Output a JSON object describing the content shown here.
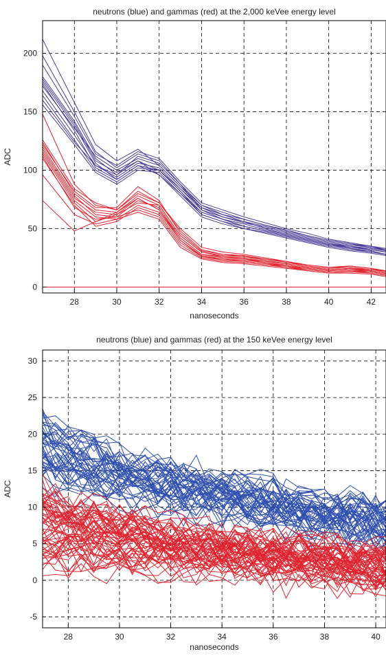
{
  "chart_data": [
    {
      "type": "line",
      "title": "neutrons (blue) and gammas (red) at the 2,000 keVee energy level",
      "xlabel": "nanoseconds",
      "ylabel": "ADC",
      "xlim": [
        26.5,
        42.7
      ],
      "ylim": [
        -5,
        228
      ],
      "x_ticks": [
        28,
        30,
        32,
        34,
        36,
        38,
        40,
        42
      ],
      "y_ticks": [
        0,
        50,
        100,
        150,
        200
      ],
      "grid": true,
      "grid_style": "dashed",
      "colors": {
        "neutron": "#4b3c96",
        "gamma": "#e0232e"
      },
      "x": [
        26.5,
        28,
        29,
        30,
        31,
        32,
        33,
        34,
        35,
        36,
        37,
        38,
        39,
        40,
        41,
        42,
        42.7
      ],
      "series": [
        {
          "group": "neutron",
          "values": [
            212,
            158,
            122,
            108,
            118,
            104,
            86,
            70,
            62,
            58,
            53,
            49,
            44,
            40,
            37,
            35,
            32
          ]
        },
        {
          "group": "neutron",
          "values": [
            198,
            150,
            116,
            102,
            114,
            108,
            88,
            66,
            60,
            55,
            51,
            46,
            42,
            38,
            35,
            32,
            30
          ]
        },
        {
          "group": "neutron",
          "values": [
            180,
            142,
            110,
            96,
            108,
            100,
            82,
            64,
            58,
            52,
            48,
            44,
            40,
            36,
            33,
            31,
            28
          ]
        },
        {
          "group": "neutron",
          "values": [
            176,
            138,
            106,
            92,
            104,
            96,
            80,
            62,
            56,
            50,
            46,
            42,
            38,
            34,
            31,
            29,
            27
          ]
        },
        {
          "group": "neutron",
          "values": [
            172,
            136,
            112,
            100,
            110,
            104,
            86,
            68,
            60,
            56,
            50,
            45,
            41,
            37,
            34,
            32,
            30
          ]
        },
        {
          "group": "neutron",
          "values": [
            168,
            130,
            104,
            94,
            106,
            102,
            84,
            66,
            58,
            54,
            49,
            45,
            41,
            37,
            35,
            33,
            31
          ]
        },
        {
          "group": "neutron",
          "values": [
            164,
            126,
            100,
            90,
            102,
            100,
            84,
            68,
            62,
            56,
            52,
            47,
            43,
            39,
            36,
            34,
            32
          ]
        },
        {
          "group": "neutron",
          "values": [
            160,
            124,
            104,
            96,
            112,
            106,
            88,
            70,
            64,
            58,
            53,
            48,
            44,
            40,
            37,
            34,
            31
          ]
        },
        {
          "group": "neutron",
          "values": [
            156,
            122,
            98,
            88,
            100,
            98,
            80,
            64,
            58,
            52,
            48,
            44,
            40,
            36,
            34,
            32,
            30
          ]
        },
        {
          "group": "neutron",
          "values": [
            178,
            140,
            108,
            98,
            108,
            96,
            78,
            60,
            54,
            50,
            47,
            43,
            39,
            35,
            32,
            30,
            28
          ]
        },
        {
          "group": "neutron",
          "values": [
            190,
            146,
            114,
            104,
            116,
            110,
            90,
            72,
            66,
            60,
            55,
            50,
            46,
            41,
            38,
            35,
            33
          ]
        },
        {
          "group": "neutron",
          "values": [
            174,
            134,
            102,
            92,
            104,
            100,
            82,
            62,
            56,
            52,
            48,
            44,
            40,
            36,
            33,
            30,
            28
          ]
        },
        {
          "group": "gamma",
          "values": [
            148,
            88,
            70,
            66,
            82,
            72,
            48,
            32,
            28,
            26,
            24,
            22,
            18,
            16,
            18,
            16,
            13
          ]
        },
        {
          "group": "gamma",
          "values": [
            124,
            80,
            66,
            64,
            78,
            70,
            44,
            30,
            26,
            25,
            22,
            20,
            17,
            15,
            16,
            14,
            12
          ]
        },
        {
          "group": "gamma",
          "values": [
            120,
            78,
            62,
            60,
            74,
            68,
            42,
            28,
            25,
            24,
            21,
            19,
            16,
            14,
            15,
            13,
            11
          ]
        },
        {
          "group": "gamma",
          "values": [
            118,
            76,
            64,
            62,
            76,
            66,
            40,
            27,
            24,
            23,
            21,
            18,
            16,
            14,
            15,
            14,
            12
          ]
        },
        {
          "group": "gamma",
          "values": [
            116,
            74,
            60,
            58,
            70,
            64,
            40,
            26,
            24,
            22,
            20,
            18,
            15,
            13,
            14,
            13,
            11
          ]
        },
        {
          "group": "gamma",
          "values": [
            114,
            72,
            56,
            62,
            72,
            70,
            44,
            30,
            27,
            26,
            23,
            20,
            17,
            15,
            16,
            15,
            13
          ]
        },
        {
          "group": "gamma",
          "values": [
            122,
            82,
            68,
            68,
            86,
            74,
            46,
            31,
            28,
            27,
            24,
            21,
            18,
            16,
            17,
            15,
            14
          ]
        },
        {
          "group": "gamma",
          "values": [
            110,
            70,
            52,
            56,
            68,
            62,
            38,
            26,
            23,
            22,
            20,
            17,
            15,
            13,
            14,
            12,
            10
          ]
        },
        {
          "group": "gamma",
          "values": [
            112,
            68,
            58,
            60,
            66,
            60,
            36,
            25,
            22,
            21,
            19,
            17,
            14,
            12,
            13,
            12,
            10
          ]
        },
        {
          "group": "gamma",
          "values": [
            96,
            62,
            54,
            58,
            64,
            58,
            34,
            24,
            21,
            20,
            18,
            16,
            14,
            12,
            12,
            11,
            9
          ]
        },
        {
          "group": "gamma",
          "values": [
            74,
            48,
            56,
            64,
            76,
            66,
            42,
            28,
            26,
            24,
            22,
            20,
            17,
            15,
            16,
            14,
            12
          ]
        },
        {
          "group": "gamma",
          "values": [
            126,
            84,
            72,
            66,
            80,
            72,
            50,
            34,
            30,
            28,
            25,
            22,
            19,
            17,
            18,
            16,
            14
          ]
        },
        {
          "group": "gamma",
          "values": [
            0,
            0,
            0,
            0,
            0,
            0,
            0,
            0,
            0,
            0,
            0,
            0,
            0,
            0,
            0,
            0,
            0
          ]
        }
      ]
    },
    {
      "type": "line",
      "title": "neutrons (blue) and gammas (red) at the 150 keVee energy level",
      "xlabel": "nanoseconds",
      "ylabel": "ADC",
      "xlim": [
        27,
        40.4
      ],
      "ylim": [
        -6.5,
        31.5
      ],
      "x_ticks": [
        28,
        30,
        32,
        34,
        36,
        38,
        40
      ],
      "y_ticks": [
        -5,
        0,
        5,
        10,
        15,
        20,
        25,
        30
      ],
      "grid": true,
      "grid_style": "dashed",
      "colors": {
        "neutron": "#2f4fb0",
        "gamma": "#e0232e"
      },
      "x": [
        27,
        27.5,
        28,
        28.5,
        29,
        29.5,
        30,
        30.5,
        31,
        31.5,
        32,
        32.5,
        33,
        33.5,
        34,
        34.5,
        35,
        35.5,
        36,
        36.5,
        37,
        37.5,
        38,
        38.5,
        39,
        39.5,
        40,
        40.4
      ],
      "noise_traces": {
        "neutron": {
          "count": 48,
          "start_range": [
            13,
            22
          ],
          "tail_range": [
            5,
            10
          ],
          "jitter": 2.4
        },
        "gamma": {
          "count": 58,
          "start_range": [
            2,
            13
          ],
          "tail_range": [
            -1,
            4
          ],
          "jitter": 2.2
        }
      }
    }
  ]
}
